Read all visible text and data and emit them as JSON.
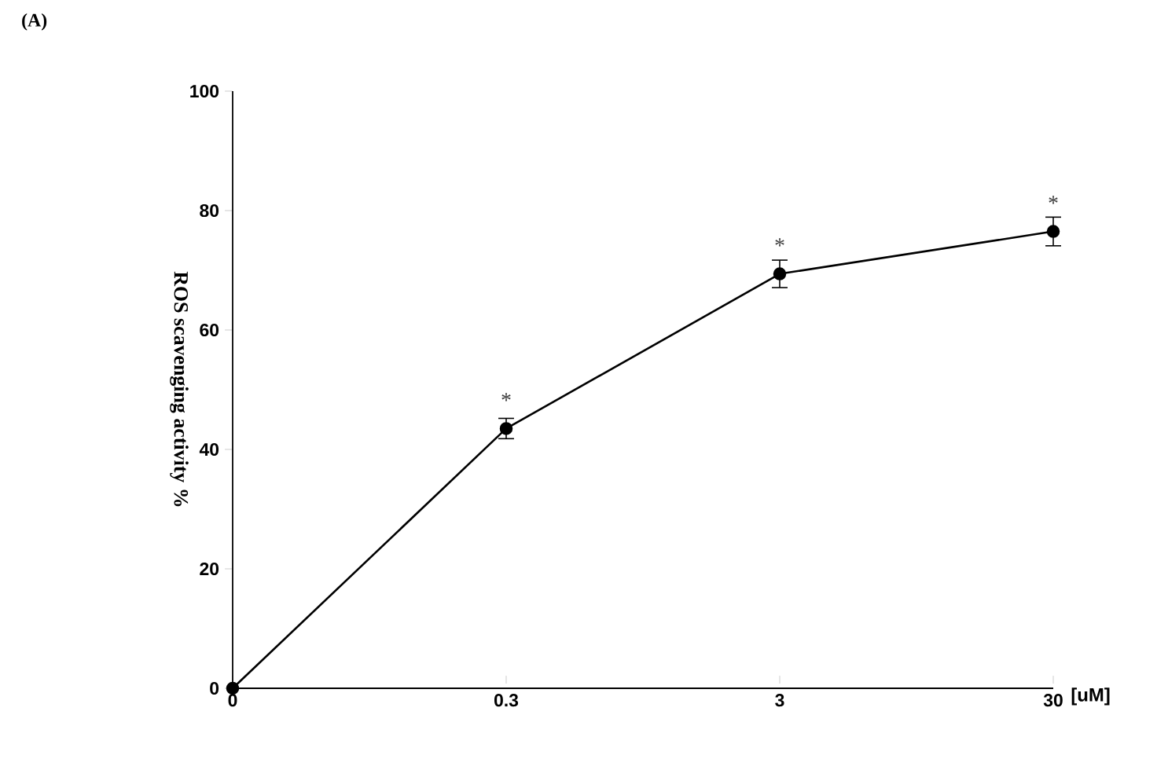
{
  "chart_data": {
    "type": "line",
    "title": "(A)",
    "xlabel": "[uM]",
    "ylabel": "ROS scavenging activity %",
    "categories": [
      "0",
      "0.3",
      "3",
      "30"
    ],
    "series": [
      {
        "color": "#000000",
        "values": [
          0,
          43.5,
          69.4,
          76.5
        ],
        "errors": [
          null,
          1.7,
          2.3,
          2.4
        ]
      }
    ],
    "ylim": [
      0,
      100
    ],
    "yticks": [
      0,
      20,
      40,
      60,
      80,
      100
    ],
    "marker": "circle",
    "line_style": "solid",
    "grid": false,
    "annotations": [
      {
        "text": "*",
        "x": "0.3",
        "y": 43.5
      },
      {
        "text": "*",
        "x": "3",
        "y": 69.4
      },
      {
        "text": "*",
        "x": "30",
        "y": 76.5
      }
    ]
  }
}
